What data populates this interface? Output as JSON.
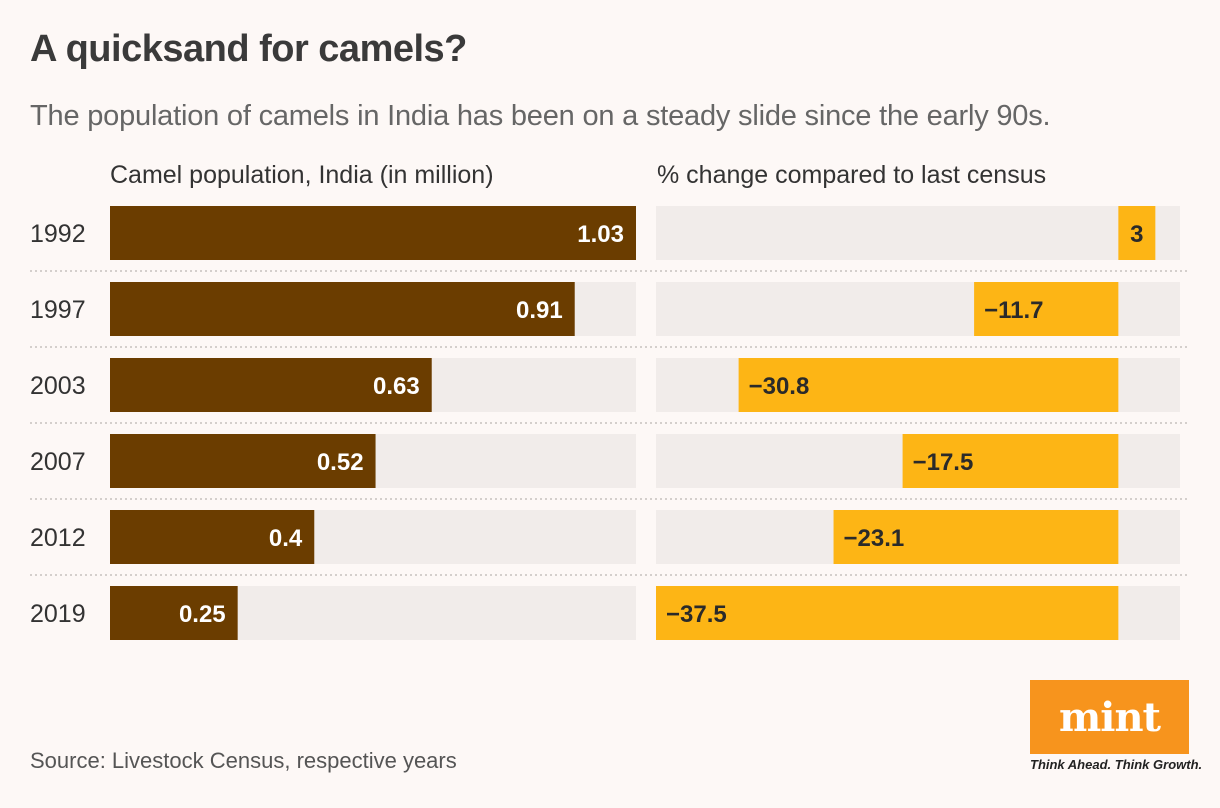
{
  "header": {
    "title": "A quicksand for camels?",
    "subtitle": "The population of camels in India has been on a steady slide since the early 90s."
  },
  "chart_data": [
    {
      "type": "bar",
      "orientation": "horizontal",
      "title": "Camel population, India (in million)",
      "categories": [
        "1992",
        "1997",
        "2003",
        "2007",
        "2012",
        "2019"
      ],
      "values": [
        1.03,
        0.91,
        0.63,
        0.52,
        0.4,
        0.25
      ],
      "value_labels": [
        "1.03",
        "0.91",
        "0.63",
        "0.52",
        "0.4",
        "0.25"
      ],
      "xlim": [
        0,
        1.03
      ],
      "color": "#6b3d00",
      "background_color": "#f1ecea"
    },
    {
      "type": "bar",
      "orientation": "horizontal",
      "title": "% change compared to last census",
      "categories": [
        "1992",
        "1997",
        "2003",
        "2007",
        "2012",
        "2019"
      ],
      "values": [
        3,
        -11.7,
        -30.8,
        -17.5,
        -23.1,
        -37.5
      ],
      "value_labels": [
        "3",
        "−11.7",
        "−30.8",
        "−17.5",
        "−23.1",
        "−37.5"
      ],
      "xlim": [
        -37.5,
        5
      ],
      "color": "#fdb515",
      "background_color": "#f1ecea"
    }
  ],
  "footer": {
    "source": "Source: Livestock Census, respective years",
    "logo": "mint",
    "tagline": "Think Ahead. Think Growth."
  }
}
